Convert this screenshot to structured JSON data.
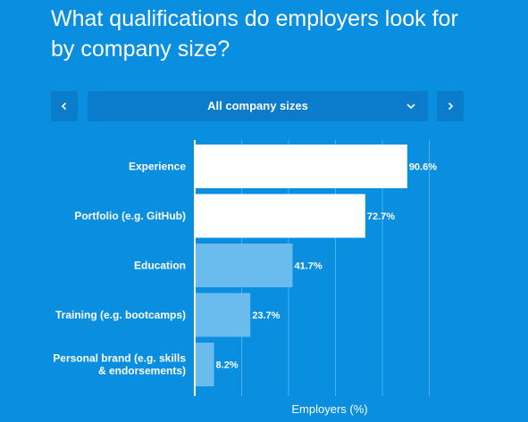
{
  "header": {
    "title_line1": "What qualifications do employers look for",
    "title_line2": "by company size?"
  },
  "filter": {
    "selected": "All company sizes",
    "prev_icon": "chevron-left-icon",
    "next_icon": "chevron-right-icon",
    "caret_icon": "chevron-down-icon"
  },
  "colors": {
    "background": "#0a8fe0",
    "control_bg": "#0a7ccb",
    "bar_highlight": "#ffffff",
    "bar_normal": "#6bbcee",
    "gridline": "#4fb0ea"
  },
  "chart_data": {
    "type": "bar",
    "orientation": "horizontal",
    "categories": [
      [
        "Experience"
      ],
      [
        "Portfolio (e.g. GitHub)"
      ],
      [
        "Education"
      ],
      [
        "Training (e.g. bootcamps)"
      ],
      [
        "Personal brand (e.g. skills",
        "& endorsements)"
      ]
    ],
    "values": [
      90.6,
      72.7,
      41.7,
      23.7,
      8.2
    ],
    "data_labels": [
      "90.6%",
      "72.7%",
      "41.7%",
      "23.7%",
      "8.2%"
    ],
    "highlighted": [
      true,
      true,
      false,
      false,
      false
    ],
    "xlabel": "Employers (%)",
    "xlim": [
      0,
      100
    ],
    "grid": true
  }
}
